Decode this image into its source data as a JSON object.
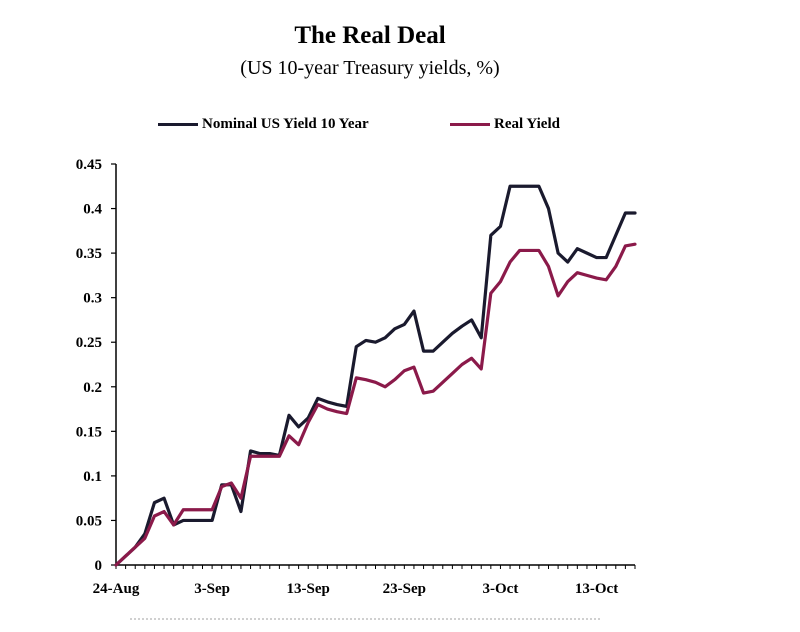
{
  "chart_data": {
    "type": "line",
    "title": "The Real Deal",
    "subtitle": "(US 10-year Treasury yields, %)",
    "xlabel": "",
    "ylabel": "",
    "ylim": [
      0,
      0.45
    ],
    "yticks": [
      "0",
      "0.05",
      "0.1",
      "0.15",
      "0.2",
      "0.25",
      "0.3",
      "0.35",
      "0.4",
      "0.45"
    ],
    "ytick_values": [
      0,
      0.05,
      0.1,
      0.15,
      0.2,
      0.25,
      0.3,
      0.35,
      0.4,
      0.45
    ],
    "xlim": [
      0,
      53
    ],
    "xticks": [
      {
        "label": "24-Aug",
        "x": 0
      },
      {
        "label": "3-Sep",
        "x": 10
      },
      {
        "label": "13-Sep",
        "x": 20
      },
      {
        "label": "23-Sep",
        "x": 30
      },
      {
        "label": "3-Oct",
        "x": 40
      },
      {
        "label": "13-Oct",
        "x": 50
      }
    ],
    "legend_position": "top",
    "series": [
      {
        "name": "Nominal US Yield 10 Year",
        "color": "#1a1a2e",
        "x": [
          0,
          1,
          2,
          3,
          4,
          5,
          6,
          7,
          8,
          9,
          10,
          11,
          12,
          13,
          14,
          15,
          16,
          17,
          18,
          19,
          20,
          21,
          22,
          23,
          24,
          25,
          26,
          27,
          28,
          29,
          30,
          31,
          32,
          33,
          34,
          35,
          36,
          37,
          38,
          39,
          40,
          41,
          42,
          43,
          44,
          45,
          46,
          47,
          48,
          49,
          50,
          51,
          52,
          53,
          54
        ],
        "values": [
          0,
          0.01,
          0.02,
          0.035,
          0.07,
          0.075,
          0.045,
          0.05,
          0.05,
          0.05,
          0.05,
          0.09,
          0.09,
          0.06,
          0.128,
          0.125,
          0.125,
          0.123,
          0.168,
          0.155,
          0.165,
          0.187,
          0.183,
          0.18,
          0.178,
          0.245,
          0.252,
          0.25,
          0.255,
          0.265,
          0.27,
          0.285,
          0.24,
          0.24,
          0.25,
          0.26,
          0.268,
          0.275,
          0.255,
          0.37,
          0.38,
          0.425,
          0.425,
          0.425,
          0.425,
          0.4,
          0.35,
          0.34,
          0.355,
          0.35,
          0.345,
          0.345,
          0.37,
          0.395,
          0.395
        ]
      },
      {
        "name": "Real Yield",
        "color": "#8b1a4a",
        "x": [
          0,
          1,
          2,
          3,
          4,
          5,
          6,
          7,
          8,
          9,
          10,
          11,
          12,
          13,
          14,
          15,
          16,
          17,
          18,
          19,
          20,
          21,
          22,
          23,
          24,
          25,
          26,
          27,
          28,
          29,
          30,
          31,
          32,
          33,
          34,
          35,
          36,
          37,
          38,
          39,
          40,
          41,
          42,
          43,
          44,
          45,
          46,
          47,
          48,
          49,
          50,
          51,
          52,
          53,
          54
        ],
        "values": [
          0,
          0.01,
          0.02,
          0.03,
          0.055,
          0.06,
          0.045,
          0.062,
          0.062,
          0.062,
          0.062,
          0.088,
          0.092,
          0.075,
          0.122,
          0.122,
          0.122,
          0.122,
          0.145,
          0.135,
          0.16,
          0.18,
          0.175,
          0.172,
          0.17,
          0.21,
          0.208,
          0.205,
          0.2,
          0.208,
          0.218,
          0.222,
          0.193,
          0.195,
          0.205,
          0.215,
          0.225,
          0.232,
          0.22,
          0.305,
          0.318,
          0.34,
          0.353,
          0.353,
          0.353,
          0.335,
          0.302,
          0.318,
          0.328,
          0.325,
          0.322,
          0.32,
          0.335,
          0.358,
          0.36
        ]
      }
    ]
  }
}
